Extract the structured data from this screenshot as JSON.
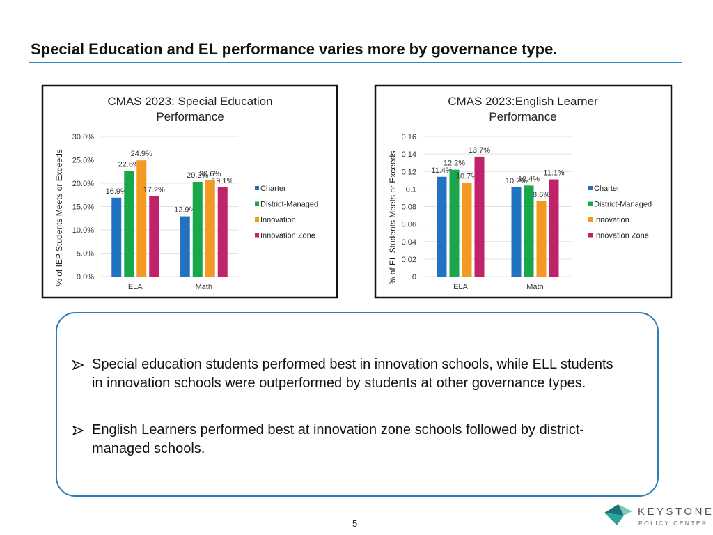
{
  "title": "Special Education and EL performance varies more by governance type.",
  "chart_data": [
    {
      "type": "bar",
      "title": "CMAS 2023: Special Education Performance",
      "y_label": "% of IEP Students Meets or Exceeds",
      "categories": [
        "ELA",
        "Math"
      ],
      "series": [
        {
          "name": "Charter",
          "color": "#2272c3",
          "values": [
            16.9,
            12.9
          ],
          "value_labels": [
            "16.9%",
            "12.9%"
          ]
        },
        {
          "name": "District-Managed",
          "color": "#1aa64a",
          "values": [
            22.6,
            20.3
          ],
          "value_labels": [
            "22.6%",
            "20.3%"
          ]
        },
        {
          "name": "Innovation",
          "color": "#f39a25",
          "values": [
            24.9,
            20.6
          ],
          "value_labels": [
            "24.9%",
            "20.6%"
          ]
        },
        {
          "name": "Innovation Zone",
          "color": "#c0226b",
          "values": [
            17.2,
            19.1
          ],
          "value_labels": [
            "17.2%",
            "19.1%"
          ]
        }
      ],
      "ylim": [
        0,
        30
      ],
      "yticks": [
        {
          "value": 0,
          "label": "0.0%"
        },
        {
          "value": 5,
          "label": "5.0%"
        },
        {
          "value": 10,
          "label": "10.0%"
        },
        {
          "value": 15,
          "label": "15.0%"
        },
        {
          "value": 20,
          "label": "20.0%"
        },
        {
          "value": 25,
          "label": "25.0%"
        },
        {
          "value": 30,
          "label": "30.0%"
        }
      ],
      "grid": true,
      "legend": "right"
    },
    {
      "type": "bar",
      "title": "CMAS 2023:English Learner Performance",
      "y_label": "% of EL Students Meets or Exceeds",
      "categories": [
        "ELA",
        "Math"
      ],
      "series": [
        {
          "name": "Charter",
          "color": "#2272c3",
          "values": [
            0.114,
            0.102
          ],
          "value_labels": [
            "11.4%",
            "10.2%"
          ]
        },
        {
          "name": "District-Managed",
          "color": "#1aa64a",
          "values": [
            0.122,
            0.104
          ],
          "value_labels": [
            "12.2%",
            "10.4%"
          ]
        },
        {
          "name": "Innovation",
          "color": "#f39a25",
          "values": [
            0.107,
            0.086
          ],
          "value_labels": [
            "10.7%",
            "8.6%"
          ]
        },
        {
          "name": "Innovation Zone",
          "color": "#c0226b",
          "values": [
            0.137,
            0.111
          ],
          "value_labels": [
            "13.7%",
            "11.1%"
          ]
        }
      ],
      "ylim": [
        0,
        0.16
      ],
      "yticks": [
        0,
        0.02,
        0.04,
        0.06,
        0.08,
        0.1,
        0.12,
        0.14,
        0.16
      ],
      "grid": true,
      "legend": "right"
    }
  ],
  "bullets": [
    "Special education students performed best in innovation schools, while ELL students in innovation schools were outperformed by students at other governance types.",
    "English Learners performed best at innovation zone schools followed by district-managed schools."
  ],
  "logo": {
    "name": "KEYSTONE",
    "tagline": "POLICY CENTER"
  },
  "page_number": "5"
}
